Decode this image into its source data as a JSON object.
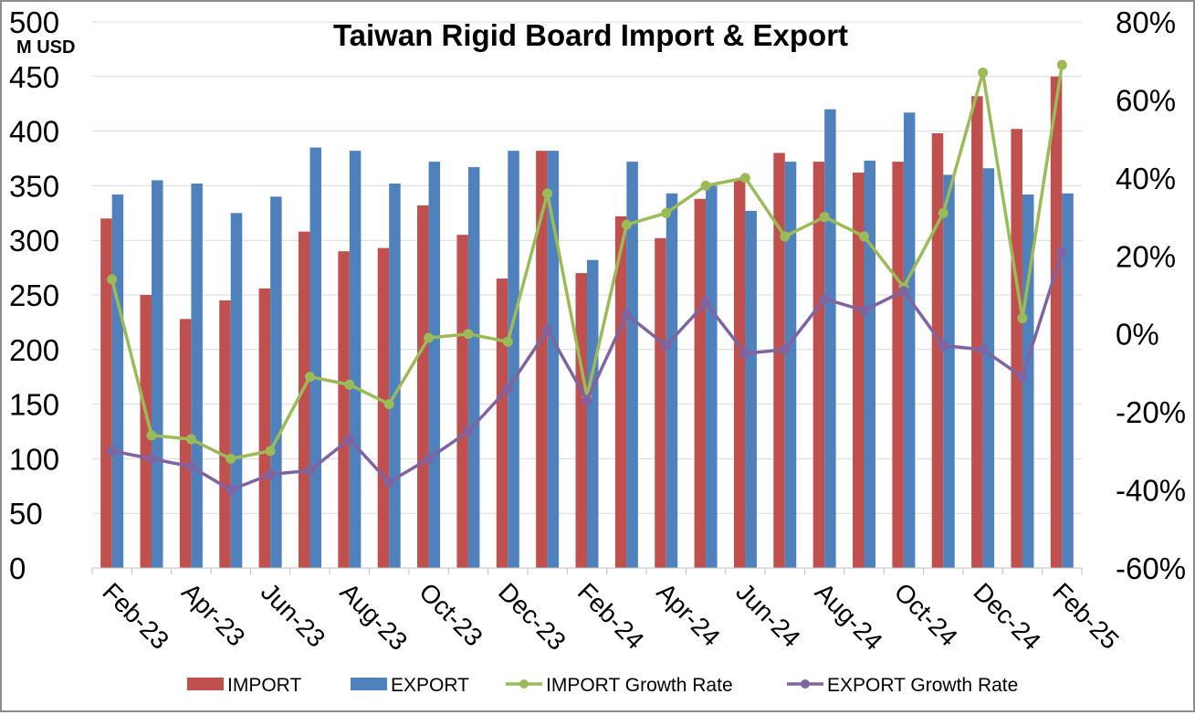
{
  "chart_data": {
    "type": "bar",
    "title": "Taiwan Rigid Board Import & Export",
    "ylabel_unit": "M USD",
    "ylim": [
      0,
      500
    ],
    "y2lim": [
      -60,
      80
    ],
    "y_ticks": [
      "0",
      "50",
      "100",
      "150",
      "200",
      "250",
      "300",
      "350",
      "400",
      "450",
      "500"
    ],
    "y2_ticks": [
      "-60%",
      "-40%",
      "-20%",
      "0%",
      "20%",
      "40%",
      "60%",
      "80%"
    ],
    "categories": [
      "Feb-23",
      "Mar-23",
      "Apr-23",
      "May-23",
      "Jun-23",
      "Jul-23",
      "Aug-23",
      "Sep-23",
      "Oct-23",
      "Nov-23",
      "Dec-23",
      "Jan-24",
      "Feb-24",
      "Mar-24",
      "Apr-24",
      "May-24",
      "Jun-24",
      "Jul-24",
      "Aug-24",
      "Sep-24",
      "Oct-24",
      "Nov-24",
      "Dec-24",
      "Jan-25",
      "Feb-25"
    ],
    "x_tick_labels": [
      "Feb-23",
      "Apr-23",
      "Jun-23",
      "Aug-23",
      "Oct-23",
      "Dec-23",
      "Feb-24",
      "Apr-24",
      "Jun-24",
      "Aug-24",
      "Oct-24",
      "Dec-24",
      "Feb-25"
    ],
    "grid": true,
    "legend_position": "bottom",
    "series": [
      {
        "name": "IMPORT",
        "kind": "bar",
        "axis": "left",
        "color": "#C0504D",
        "values": [
          320,
          250,
          228,
          245,
          256,
          308,
          290,
          293,
          332,
          305,
          265,
          382,
          270,
          322,
          302,
          338,
          355,
          380,
          372,
          362,
          372,
          398,
          432,
          402,
          450
        ]
      },
      {
        "name": "EXPORT",
        "kind": "bar",
        "axis": "left",
        "color": "#4F81BD",
        "values": [
          342,
          355,
          352,
          325,
          340,
          385,
          382,
          352,
          372,
          367,
          382,
          382,
          282,
          372,
          343,
          350,
          327,
          372,
          420,
          373,
          417,
          360,
          366,
          342,
          343
        ]
      },
      {
        "name": "IMPORT Growth Rate",
        "kind": "line",
        "axis": "right",
        "color": "#9BBB59",
        "values": [
          14,
          -26,
          -27,
          -32,
          -30,
          -11,
          -13,
          -18,
          -1,
          0,
          -2,
          36,
          -16,
          28,
          31,
          38,
          40,
          25,
          30,
          25,
          12,
          31,
          67,
          4,
          69
        ]
      },
      {
        "name": "EXPORT Growth Rate",
        "kind": "line",
        "axis": "right",
        "color": "#8064A2",
        "values": [
          -30,
          -32,
          -34,
          -40,
          -36,
          -35,
          -27,
          -38,
          -32,
          -25,
          -14,
          1,
          -17,
          5,
          -3,
          8,
          -5,
          -4,
          9,
          6,
          11,
          -3,
          -4,
          -11,
          21
        ]
      }
    ]
  }
}
